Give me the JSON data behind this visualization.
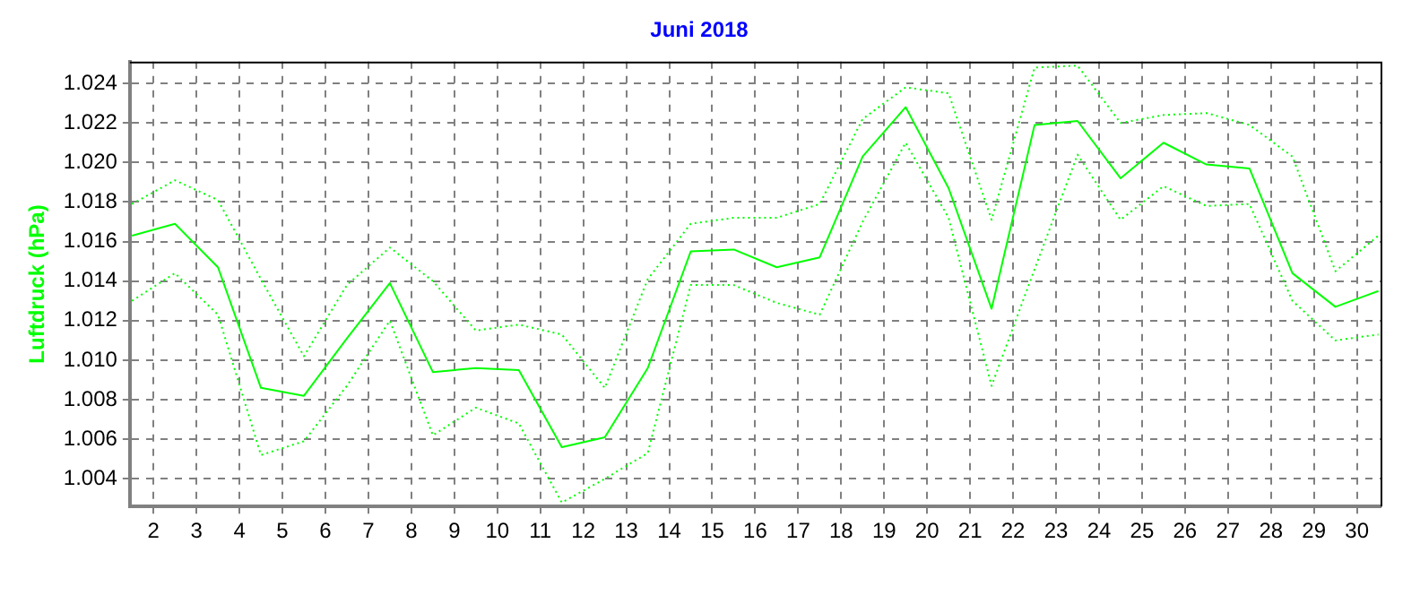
{
  "chart_data": {
    "type": "line",
    "title": "Juni 2018",
    "ylabel": "Luftdruck (hPa)",
    "x": [
      1.5,
      2.5,
      3.5,
      4.5,
      5.5,
      6.5,
      7.5,
      8.5,
      9.5,
      10.5,
      11.5,
      12.5,
      13.5,
      14.5,
      15.5,
      16.5,
      17.5,
      18.5,
      19.5,
      20.5,
      21.5,
      22.5,
      23.5,
      24.5,
      25.5,
      26.5,
      27.5,
      28.5,
      29.5,
      30.5
    ],
    "series": [
      {
        "color": "#00ff00",
        "line_style": "dotted",
        "values": [
          1.0179,
          1.0191,
          1.0181,
          1.0141,
          1.0102,
          1.0138,
          1.0157,
          1.014,
          1.0115,
          1.0118,
          1.0113,
          1.0086,
          1.0141,
          1.0169,
          1.0172,
          1.0172,
          1.0179,
          1.0222,
          1.0238,
          1.0235,
          1.0171,
          1.0248,
          1.0249,
          1.022,
          1.0224,
          1.0225,
          1.0219,
          1.0203,
          1.0145,
          1.0163
        ]
      },
      {
        "color": "#00ff00",
        "line_style": "solid",
        "values": [
          1.0163,
          1.0169,
          1.0147,
          1.0086,
          1.0082,
          1.0111,
          1.0139,
          1.0094,
          1.0096,
          1.0095,
          1.0056,
          1.0061,
          1.0096,
          1.0155,
          1.0156,
          1.0147,
          1.0152,
          1.0203,
          1.0228,
          1.0187,
          1.0126,
          1.0219,
          1.0221,
          1.0192,
          1.021,
          1.0199,
          1.0197,
          1.0144,
          1.0127,
          1.0135
        ]
      },
      {
        "color": "#00ff00",
        "line_style": "dotted",
        "values": [
          1.013,
          1.0144,
          1.0123,
          1.0052,
          1.0059,
          1.0087,
          1.012,
          1.0062,
          1.0076,
          1.0068,
          1.0028,
          1.004,
          1.0053,
          1.0138,
          1.0138,
          1.0129,
          1.0123,
          1.017,
          1.021,
          1.0172,
          1.0087,
          1.0146,
          1.0204,
          1.0171,
          1.0188,
          1.0178,
          1.0179,
          1.013,
          1.011,
          1.0113
        ]
      }
    ],
    "xlim": [
      1.45,
      30.55
    ],
    "xticks": [
      2,
      3,
      4,
      5,
      6,
      7,
      8,
      9,
      10,
      11,
      12,
      13,
      14,
      15,
      16,
      17,
      18,
      19,
      20,
      21,
      22,
      23,
      24,
      25,
      26,
      27,
      28,
      29,
      30
    ],
    "ylim": [
      1.0026,
      1.0251
    ],
    "yticks": [
      {
        "value": 1.004,
        "label": "1.004"
      },
      {
        "value": 1.006,
        "label": "1.006"
      },
      {
        "value": 1.008,
        "label": "1.008"
      },
      {
        "value": 1.01,
        "label": "1.010"
      },
      {
        "value": 1.012,
        "label": "1.012"
      },
      {
        "value": 1.014,
        "label": "1.014"
      },
      {
        "value": 1.016,
        "label": "1.016"
      },
      {
        "value": 1.018,
        "label": "1.018"
      },
      {
        "value": 1.02,
        "label": "1.020"
      },
      {
        "value": 1.022,
        "label": "1.022"
      },
      {
        "value": 1.024,
        "label": "1.024"
      }
    ],
    "grid": true,
    "legend": false,
    "marker": "none"
  }
}
